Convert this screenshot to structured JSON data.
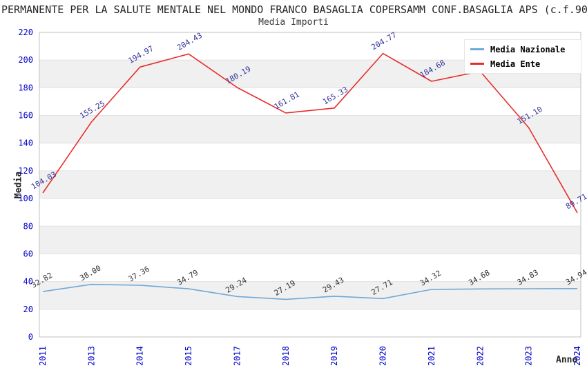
{
  "header": {
    "title": "PERMANENTE PER LA SALUTE MENTALE NEL MONDO FRANCO BASAGLIA COPERSAMM CONF.BASAGLIA APS (c.f.90",
    "subtitle": "Media Importi"
  },
  "colors": {
    "tick_label": "#0000cc",
    "axis_label": "#262626",
    "grid_line": "#e3e3e3",
    "band_white": "#ffffff",
    "band_gray": "#f0f0f0",
    "plot_border": "#c0c0c0",
    "legend_border": "#e6e6e6"
  },
  "chart_data": {
    "type": "line",
    "title": "Media Importi",
    "xlabel": "Anno",
    "ylabel": "Media",
    "ylim": [
      0,
      220
    ],
    "ytick_step": 20,
    "grid": true,
    "background_bands": true,
    "legend_position": "top-right",
    "categories": [
      "2011",
      "2013",
      "2014",
      "2015",
      "2017",
      "2018",
      "2019",
      "2020",
      "2021",
      "2022",
      "2023",
      "2024"
    ],
    "series": [
      {
        "name": "Media Nazionale",
        "color": "#6fa8d6",
        "label_color": "#333333",
        "values": [
          32.82,
          38.0,
          37.36,
          34.79,
          29.24,
          27.19,
          29.43,
          27.71,
          34.32,
          34.68,
          34.83,
          34.94
        ],
        "labels": [
          "32.82",
          "38.00",
          "37.36",
          "34.79",
          "29.24",
          "27.19",
          "29.43",
          "27.71",
          "34.32",
          "34.68",
          "34.83",
          "34.94"
        ]
      },
      {
        "name": "Media Ente",
        "color": "#e82c2c",
        "label_color": "#333399",
        "values": [
          104.03,
          155.25,
          194.97,
          204.43,
          180.19,
          161.81,
          165.33,
          204.77,
          184.68,
          191.9,
          151.1,
          89.71
        ],
        "labels": [
          "104.03",
          "155.25",
          "194.97",
          "204.43",
          "180.19",
          "161.81",
          "165.33",
          "204.77",
          "184.68",
          "",
          "151.10",
          "89.71"
        ]
      }
    ]
  }
}
